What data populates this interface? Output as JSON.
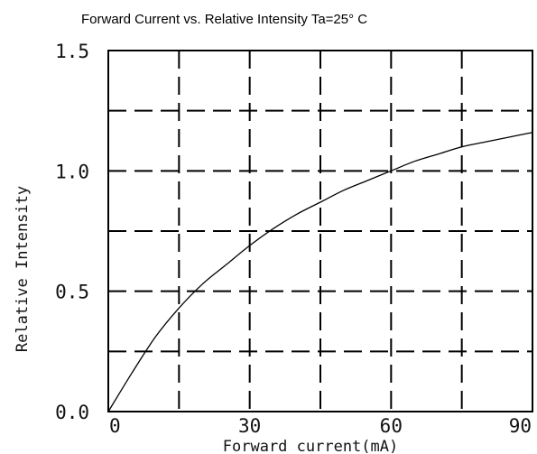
{
  "chart_data": {
    "type": "line",
    "title": "Forward Current vs. Relative Intensity  Ta=25° C",
    "xlabel": "Forward current(mA)",
    "ylabel": "Relative Intensity",
    "xlim": [
      0,
      90
    ],
    "ylim": [
      0,
      1.5
    ],
    "x_ticks": [
      "0",
      "30",
      "60",
      "90"
    ],
    "y_ticks": [
      "0.0",
      "0.5",
      "1.0",
      "1.5"
    ],
    "grid": true,
    "series": [
      {
        "x": [
          0,
          5,
          10,
          15,
          20,
          25,
          30,
          35,
          40,
          45,
          50,
          55,
          60,
          65,
          70,
          75,
          80,
          85,
          90
        ],
        "y": [
          0.0,
          0.16,
          0.31,
          0.43,
          0.53,
          0.61,
          0.69,
          0.76,
          0.82,
          0.87,
          0.92,
          0.96,
          1.0,
          1.04,
          1.07,
          1.1,
          1.12,
          1.14,
          1.16
        ]
      }
    ]
  }
}
